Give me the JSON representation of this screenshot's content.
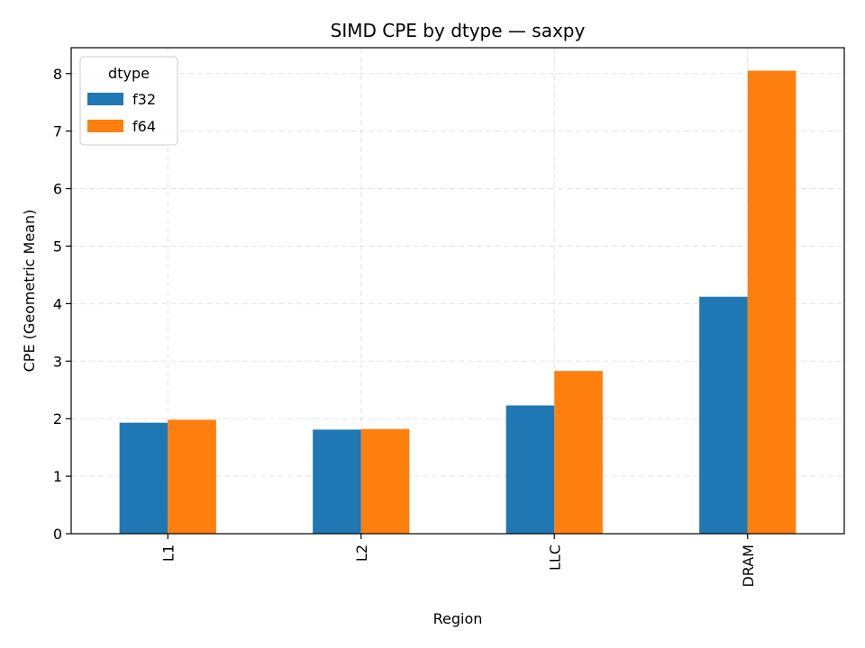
{
  "chart_data": {
    "type": "bar",
    "title": "SIMD CPE by dtype — saxpy",
    "xlabel": "Region",
    "ylabel": "CPE (Geometric Mean)",
    "categories": [
      "L1",
      "L2",
      "LLC",
      "DRAM"
    ],
    "series": [
      {
        "name": "f32",
        "color": "#1f77b4",
        "values": [
          1.93,
          1.81,
          2.23,
          4.12
        ]
      },
      {
        "name": "f64",
        "color": "#ff7f0e",
        "values": [
          1.98,
          1.82,
          2.83,
          8.05
        ]
      }
    ],
    "ylim": [
      0,
      8.45
    ],
    "yticks": [
      "0",
      "1",
      "2",
      "3",
      "4",
      "5",
      "6",
      "7",
      "8"
    ],
    "grid": true,
    "legend": {
      "title": "dtype",
      "placement": "top-left"
    }
  }
}
